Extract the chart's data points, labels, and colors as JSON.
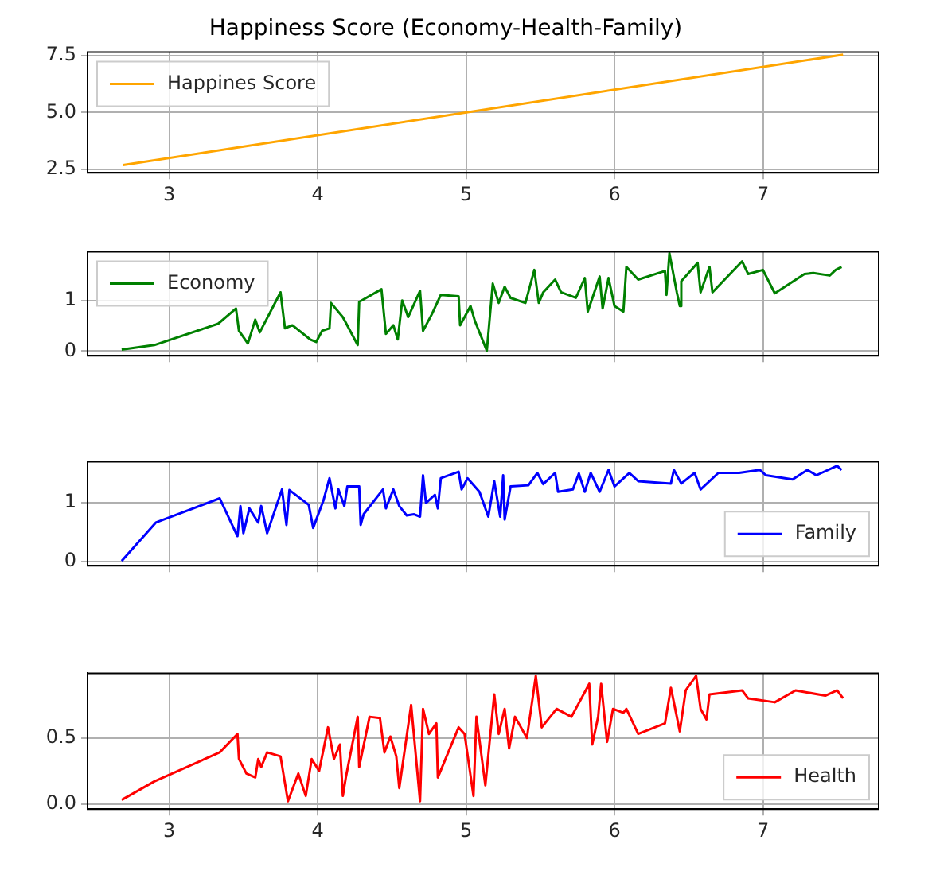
{
  "chart_data": [
    {
      "type": "line",
      "title": "Happiness Score (Economy-Health-Family)",
      "legend": "top left",
      "grid": true,
      "xlim": [
        2.45,
        7.78
      ],
      "xticks": [
        3,
        4,
        5,
        6,
        7
      ],
      "ylim": [
        2.35,
        7.65
      ],
      "yticks": [
        2.5,
        {
          "value": 5,
          "label": "5.0"
        },
        7.5
      ],
      "series": [
        {
          "name": "Happines Score",
          "color": "#ffa500",
          "x": [
            2.69,
            7.54
          ],
          "values": [
            2.69,
            7.54
          ]
        }
      ]
    },
    {
      "type": "line",
      "legend": "top left",
      "grid": true,
      "xlim": [
        2.45,
        7.78
      ],
      "xticks": [
        3,
        4,
        5,
        6,
        7
      ],
      "ylim": [
        -0.09,
        1.96
      ],
      "yticks": [
        0,
        1
      ],
      "tick_labels": "y",
      "series": [
        {
          "name": "Economy",
          "color": "#008000",
          "x": [
            2.68,
            2.9,
            3.33,
            3.45,
            3.47,
            3.53,
            3.58,
            3.61,
            3.75,
            3.78,
            3.83,
            3.95,
            3.99,
            4.03,
            4.08,
            4.09,
            4.17,
            4.27,
            4.28,
            4.43,
            4.46,
            4.51,
            4.54,
            4.57,
            4.61,
            4.69,
            4.71,
            4.77,
            4.83,
            4.95,
            4.96,
            5.03,
            5.06,
            5.14,
            5.18,
            5.22,
            5.26,
            5.3,
            5.4,
            5.46,
            5.49,
            5.52,
            5.6,
            5.64,
            5.74,
            5.8,
            5.82,
            5.9,
            5.92,
            5.96,
            6.0,
            6.06,
            6.08,
            6.16,
            6.34,
            6.35,
            6.37,
            6.42,
            6.44,
            6.45,
            6.56,
            6.58,
            6.64,
            6.66,
            6.86,
            6.9,
            7.0,
            7.08,
            7.28,
            7.34,
            7.45,
            7.49,
            7.53
          ],
          "values": [
            0.03,
            0.12,
            0.54,
            0.84,
            0.4,
            0.15,
            0.62,
            0.37,
            1.16,
            0.45,
            0.51,
            0.23,
            0.18,
            0.4,
            0.45,
            0.95,
            0.67,
            0.12,
            0.97,
            1.22,
            0.34,
            0.51,
            0.23,
            1.0,
            0.67,
            1.19,
            0.4,
            0.73,
            1.11,
            1.08,
            0.51,
            0.89,
            0.59,
            0.01,
            1.33,
            0.95,
            1.27,
            1.05,
            0.95,
            1.6,
            0.95,
            1.16,
            1.41,
            1.16,
            1.05,
            1.44,
            0.78,
            1.47,
            0.84,
            1.44,
            0.89,
            0.78,
            1.66,
            1.41,
            1.58,
            1.11,
            1.93,
            1.16,
            0.89,
            1.38,
            1.74,
            1.16,
            1.66,
            1.16,
            1.77,
            1.52,
            1.6,
            1.14,
            1.52,
            1.54,
            1.49,
            1.6,
            1.66
          ]
        }
      ]
    },
    {
      "type": "line",
      "legend": "bottom right",
      "grid": true,
      "xlim": [
        2.45,
        7.78
      ],
      "xticks": [
        3,
        4,
        5,
        6,
        7
      ],
      "ylim": [
        -0.07,
        1.69
      ],
      "yticks": [
        0,
        1
      ],
      "tick_labels": "y",
      "series": [
        {
          "name": "Family",
          "color": "#0000ff",
          "x": [
            2.68,
            2.91,
            3.34,
            3.46,
            3.48,
            3.5,
            3.54,
            3.6,
            3.62,
            3.66,
            3.76,
            3.79,
            3.81,
            3.94,
            3.97,
            4.04,
            4.08,
            4.12,
            4.14,
            4.18,
            4.2,
            4.28,
            4.29,
            4.31,
            4.44,
            4.46,
            4.51,
            4.55,
            4.6,
            4.65,
            4.69,
            4.71,
            4.73,
            4.79,
            4.81,
            4.83,
            4.95,
            4.97,
            5.01,
            5.09,
            5.15,
            5.19,
            5.23,
            5.25,
            5.26,
            5.3,
            5.42,
            5.48,
            5.52,
            5.6,
            5.62,
            5.72,
            5.76,
            5.8,
            5.84,
            5.9,
            5.96,
            6.0,
            6.1,
            6.16,
            6.38,
            6.4,
            6.45,
            6.54,
            6.58,
            6.7,
            6.84,
            6.98,
            7.02,
            7.2,
            7.3,
            7.36,
            7.5,
            7.53
          ],
          "values": [
            0.01,
            0.66,
            1.07,
            0.43,
            0.94,
            0.48,
            0.9,
            0.66,
            0.94,
            0.48,
            1.22,
            0.62,
            1.21,
            0.96,
            0.57,
            1.04,
            1.41,
            0.9,
            1.22,
            0.94,
            1.27,
            1.27,
            0.62,
            0.8,
            1.22,
            0.9,
            1.22,
            0.94,
            0.78,
            0.8,
            0.76,
            1.46,
            0.99,
            1.13,
            0.9,
            1.41,
            1.52,
            1.22,
            1.41,
            1.18,
            0.76,
            1.36,
            0.76,
            1.46,
            0.71,
            1.27,
            1.29,
            1.5,
            1.31,
            1.5,
            1.18,
            1.22,
            1.49,
            1.18,
            1.5,
            1.18,
            1.55,
            1.27,
            1.5,
            1.36,
            1.32,
            1.55,
            1.32,
            1.5,
            1.22,
            1.5,
            1.5,
            1.55,
            1.46,
            1.39,
            1.55,
            1.46,
            1.62,
            1.55
          ]
        }
      ]
    },
    {
      "type": "line",
      "legend": "bottom right",
      "grid": true,
      "xlim": [
        2.45,
        7.78
      ],
      "xticks": [
        3,
        4,
        5,
        6,
        7
      ],
      "ylim": [
        -0.04,
        0.99
      ],
      "yticks": [
        {
          "value": 0,
          "label": "0.0"
        },
        0.5
      ],
      "series": [
        {
          "name": "Health",
          "color": "#ff0000",
          "x": [
            2.68,
            2.9,
            3.34,
            3.46,
            3.47,
            3.52,
            3.58,
            3.6,
            3.62,
            3.66,
            3.75,
            3.8,
            3.87,
            3.92,
            3.96,
            4.01,
            4.07,
            4.11,
            4.15,
            4.17,
            4.19,
            4.27,
            4.28,
            4.35,
            4.42,
            4.45,
            4.49,
            4.53,
            4.55,
            4.63,
            4.69,
            4.71,
            4.75,
            4.8,
            4.81,
            4.95,
            4.99,
            5.05,
            5.07,
            5.13,
            5.19,
            5.22,
            5.26,
            5.29,
            5.33,
            5.41,
            5.47,
            5.51,
            5.61,
            5.71,
            5.83,
            5.85,
            5.89,
            5.91,
            5.95,
            5.99,
            6.06,
            6.08,
            6.16,
            6.34,
            6.38,
            6.42,
            6.44,
            6.48,
            6.55,
            6.58,
            6.62,
            6.64,
            6.86,
            6.9,
            7.08,
            7.22,
            7.42,
            7.5,
            7.54
          ],
          "values": [
            0.03,
            0.17,
            0.39,
            0.53,
            0.34,
            0.23,
            0.2,
            0.34,
            0.28,
            0.39,
            0.36,
            0.02,
            0.23,
            0.06,
            0.34,
            0.25,
            0.58,
            0.34,
            0.45,
            0.06,
            0.2,
            0.66,
            0.28,
            0.66,
            0.65,
            0.39,
            0.51,
            0.36,
            0.12,
            0.75,
            0.02,
            0.72,
            0.53,
            0.61,
            0.2,
            0.58,
            0.53,
            0.06,
            0.66,
            0.14,
            0.83,
            0.53,
            0.72,
            0.42,
            0.66,
            0.5,
            0.97,
            0.58,
            0.72,
            0.66,
            0.91,
            0.45,
            0.66,
            0.91,
            0.47,
            0.72,
            0.69,
            0.72,
            0.53,
            0.61,
            0.88,
            0.66,
            0.55,
            0.86,
            0.97,
            0.72,
            0.64,
            0.83,
            0.86,
            0.8,
            0.77,
            0.86,
            0.82,
            0.86,
            0.8
          ]
        }
      ]
    }
  ]
}
